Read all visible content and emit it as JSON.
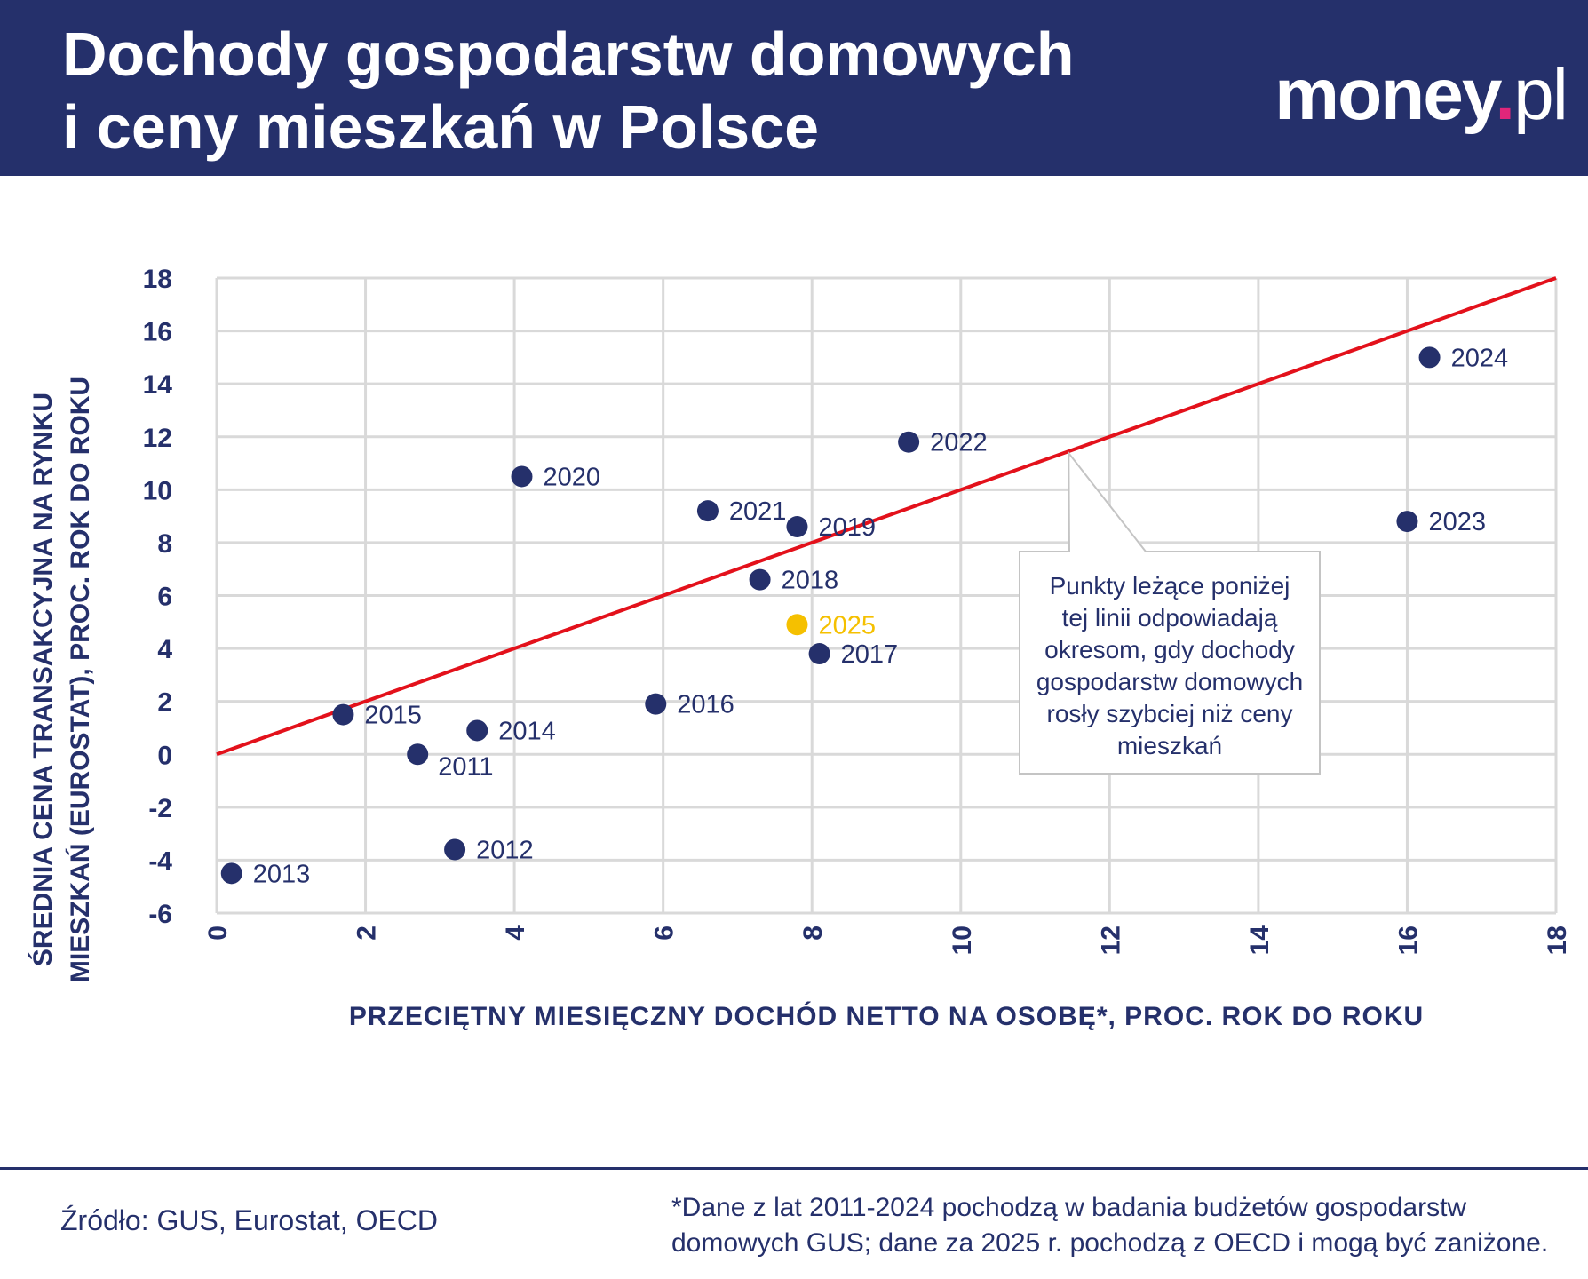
{
  "header": {
    "title_line1": "Dochody gospodarstw domowych",
    "title_line2": "i ceny mieszkań w Polsce",
    "logo_main": "money",
    "logo_dot": ".",
    "logo_suffix": "pl",
    "colors": {
      "header_bg": "#25306b",
      "logo_dot": "#e0267a"
    }
  },
  "chart_data": {
    "type": "scatter",
    "xlabel": "PRZECIĘTNY MIESIĘCZNY DOCHÓD NETTO NA OSOBĘ*, PROC. ROK DO ROKU",
    "ylabel_line1": "ŚREDNIA CENA TRANSAKCYJNA NA RYNKU",
    "ylabel_line2": "MIESZKAŃ (EUROSTAT), PROC. ROK DO ROKU",
    "xlim": [
      0,
      18
    ],
    "ylim": [
      -6,
      18
    ],
    "x_ticks": [
      "0",
      "2",
      "4",
      "6",
      "8",
      "10",
      "12",
      "14",
      "16",
      "18"
    ],
    "y_ticks": [
      "18",
      "16",
      "14",
      "12",
      "10",
      "8",
      "6",
      "4",
      "2",
      "0",
      "-2",
      "-4",
      "-6"
    ],
    "grid": true,
    "points": [
      {
        "label": "2011",
        "x": 2.7,
        "y": 0.0
      },
      {
        "label": "2012",
        "x": 3.2,
        "y": -3.6
      },
      {
        "label": "2013",
        "x": 0.2,
        "y": -4.5
      },
      {
        "label": "2014",
        "x": 3.5,
        "y": 0.9
      },
      {
        "label": "2015",
        "x": 1.7,
        "y": 1.5
      },
      {
        "label": "2016",
        "x": 5.9,
        "y": 1.9
      },
      {
        "label": "2017",
        "x": 8.1,
        "y": 3.8
      },
      {
        "label": "2018",
        "x": 7.3,
        "y": 6.6
      },
      {
        "label": "2019",
        "x": 7.8,
        "y": 8.6
      },
      {
        "label": "2020",
        "x": 4.1,
        "y": 10.5
      },
      {
        "label": "2021",
        "x": 6.6,
        "y": 9.2
      },
      {
        "label": "2022",
        "x": 9.3,
        "y": 11.8
      },
      {
        "label": "2023",
        "x": 16.0,
        "y": 8.8
      },
      {
        "label": "2024",
        "x": 16.3,
        "y": 15.0
      },
      {
        "label": "2025",
        "x": 7.8,
        "y": 4.9,
        "highlight": true
      }
    ],
    "reference_line": {
      "from": [
        0,
        0
      ],
      "to": [
        18,
        18
      ]
    },
    "annotation": {
      "lines": [
        "Punkty leżące poniżej",
        "tej linii odpowiadają",
        "okresom, gdy dochody",
        "gospodarstw domowych",
        "rosły szybciej niż ceny",
        "mieszkań"
      ]
    },
    "colors": {
      "point": "#25306b",
      "highlight": "#f5c000",
      "line": "#e3111b",
      "grid": "#d9d9d9",
      "text": "#25306b"
    }
  },
  "footer": {
    "source": "Źródło: GUS, Eurostat, OECD",
    "note_line1": "*Dane z lat 2011-2024 pochodzą w badania budżetów gospodarstw",
    "note_line2": "domowych GUS; dane za 2025 r. pochodzą z OECD i mogą być zaniżone."
  }
}
